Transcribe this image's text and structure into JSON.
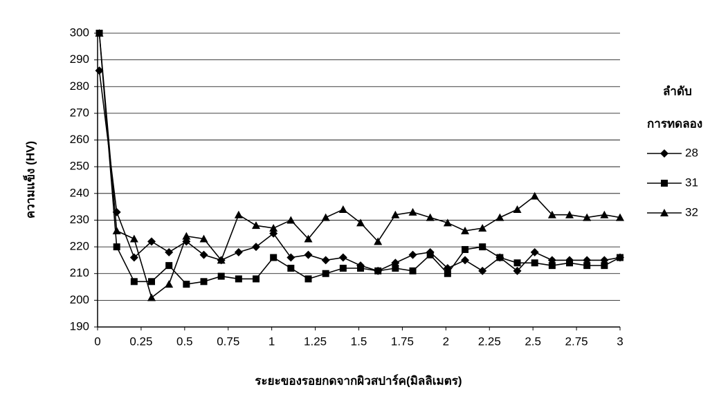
{
  "chart_data": {
    "type": "line",
    "x_label": "ระยะของรอยกดจากผิวสปาร์ค(มิลลิเมตร)",
    "y_label": "ความแข็ง (HV)",
    "legend_title": [
      "ลำดับ",
      "การทดลอง"
    ],
    "legend_position": "right",
    "grid": true,
    "x": [
      0.01,
      0.11,
      0.21,
      0.31,
      0.41,
      0.51,
      0.61,
      0.71,
      0.81,
      0.91,
      1.01,
      1.11,
      1.21,
      1.31,
      1.41,
      1.51,
      1.61,
      1.71,
      1.81,
      1.91,
      2.01,
      2.11,
      2.21,
      2.31,
      2.41,
      2.51,
      2.61,
      2.71,
      2.81,
      2.91,
      3.0
    ],
    "series": [
      {
        "name": "28",
        "color": "#000000",
        "marker": "diamond",
        "values": [
          286,
          233,
          216,
          222,
          218,
          222,
          217,
          215,
          218,
          220,
          225,
          216,
          217,
          215,
          216,
          213,
          211,
          214,
          217,
          218,
          212,
          215,
          211,
          216,
          211,
          218,
          215,
          215,
          215,
          215,
          216
        ]
      },
      {
        "name": "31",
        "color": "#000000",
        "marker": "square",
        "values": [
          300,
          220,
          207,
          207,
          213,
          206,
          207,
          209,
          208,
          208,
          216,
          212,
          208,
          210,
          212,
          212,
          211,
          212,
          211,
          217,
          210,
          219,
          220,
          216,
          214,
          214,
          213,
          214,
          213,
          213,
          216
        ]
      },
      {
        "name": "32",
        "color": "#000000",
        "marker": "triangle",
        "values": [
          300,
          226,
          223,
          201,
          206,
          224,
          223,
          215,
          232,
          228,
          227,
          230,
          223,
          231,
          234,
          229,
          222,
          232,
          233,
          231,
          229,
          226,
          227,
          231,
          234,
          239,
          232,
          232,
          231,
          232,
          231
        ]
      }
    ],
    "xlim": [
      0,
      3
    ],
    "xticks": [
      0,
      0.25,
      0.5,
      0.75,
      1,
      1.25,
      1.5,
      1.75,
      2,
      2.25,
      2.5,
      2.75,
      3
    ],
    "ylim": [
      190,
      300
    ],
    "yticks": [
      190,
      200,
      210,
      220,
      230,
      240,
      250,
      260,
      270,
      280,
      290,
      300
    ]
  }
}
